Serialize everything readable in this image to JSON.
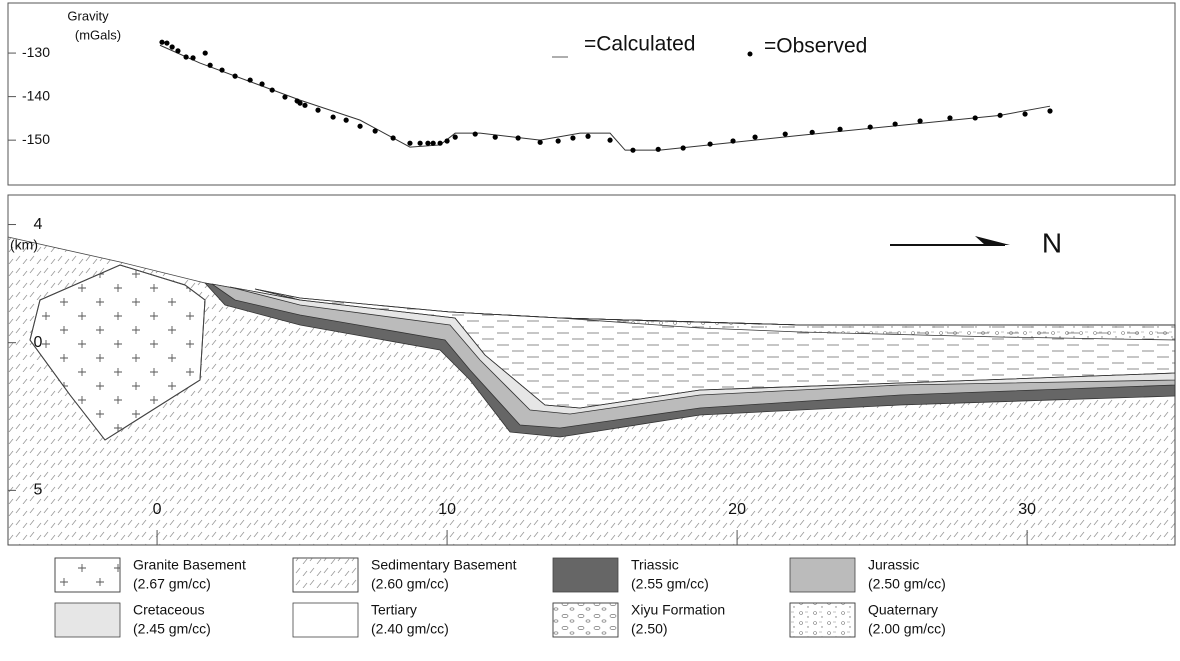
{
  "chart_data": {
    "type": "scatter",
    "y_label_line1": "Gravity",
    "y_label_line2": "(mGals)",
    "xlim": [
      -5.14,
      35.1
    ],
    "ylim": [
      -160.3,
      -118.5
    ],
    "yticks": [
      -130,
      -140,
      -150
    ],
    "series": [
      {
        "name": "=Calculated",
        "type": "line",
        "color": "#333333",
        "x": [
          0.1,
          1.48,
          4.93,
          7.0,
          8.72,
          9.76,
          10.28,
          11.14,
          13.21,
          14.59,
          15.62,
          16.14,
          17.34,
          22.17,
          29.07,
          30.79
        ],
        "values": [
          -128.2,
          -132.3,
          -140.8,
          -145.4,
          -151.6,
          -151.1,
          -148.4,
          -148.4,
          -150.0,
          -148.4,
          -148.4,
          -152.3,
          -152.3,
          -148.9,
          -144.3,
          -142.2
        ]
      },
      {
        "name": "=Observed",
        "type": "scatter",
        "color": "#000000",
        "x": [
          0.17,
          0.34,
          0.52,
          0.72,
          1.0,
          1.24,
          1.66,
          1.83,
          2.24,
          2.69,
          3.21,
          3.62,
          3.97,
          4.41,
          4.83,
          4.93,
          5.1,
          5.55,
          6.07,
          6.52,
          7.0,
          7.52,
          8.14,
          8.72,
          9.07,
          9.34,
          9.52,
          9.76,
          10.0,
          10.28,
          10.97,
          11.66,
          12.45,
          13.21,
          13.83,
          14.34,
          14.86,
          15.62,
          16.41,
          17.28,
          18.14,
          19.07,
          19.86,
          20.62,
          21.66,
          22.59,
          23.55,
          24.59,
          25.45,
          26.31,
          27.34,
          28.21,
          29.07,
          29.93,
          30.79
        ],
        "values": [
          -127.5,
          -127.7,
          -128.6,
          -129.5,
          -130.9,
          -131.1,
          -130.0,
          -132.8,
          -133.9,
          -135.3,
          -136.2,
          -137.1,
          -138.5,
          -140.1,
          -141.0,
          -141.5,
          -142.0,
          -143.1,
          -144.7,
          -145.4,
          -146.8,
          -147.9,
          -149.5,
          -150.7,
          -150.7,
          -150.7,
          -150.7,
          -150.7,
          -150.2,
          -149.3,
          -148.6,
          -149.3,
          -149.5,
          -150.5,
          -150.2,
          -149.5,
          -149.1,
          -150.0,
          -152.3,
          -152.1,
          -151.8,
          -150.9,
          -150.2,
          -149.3,
          -148.6,
          -148.2,
          -147.5,
          -147.0,
          -146.3,
          -145.6,
          -144.9,
          -144.9,
          -144.3,
          -144.0,
          -143.3
        ]
      }
    ]
  },
  "section": {
    "xlim": [
      -5.14,
      35.1
    ],
    "ylim": [
      -6.85,
      5.0
    ],
    "xticks": [
      0,
      10,
      20,
      30
    ],
    "yticks": [
      4,
      0,
      {
        "value": -5,
        "label": "5"
      }
    ],
    "y_label": "(km)",
    "north_label": "N",
    "legend": [
      {
        "name": "Granite Basement",
        "density": "(2.67 gm/cc)"
      },
      {
        "name": "Sedimentary Basement",
        "density": "(2.60 gm/cc)"
      },
      {
        "name": "Triassic",
        "density": "(2.55 gm/cc)"
      },
      {
        "name": "Jurassic",
        "density": "(2.50 gm/cc)"
      },
      {
        "name": "Cretaceous",
        "density": "(2.45 gm/cc)"
      },
      {
        "name": "Tertiary",
        "density": "(2.40 gm/cc)"
      },
      {
        "name": "Xiyu Formation",
        "density": "(2.50)"
      },
      {
        "name": "Quaternary",
        "density": "(2.00 gm/cc)"
      }
    ]
  }
}
